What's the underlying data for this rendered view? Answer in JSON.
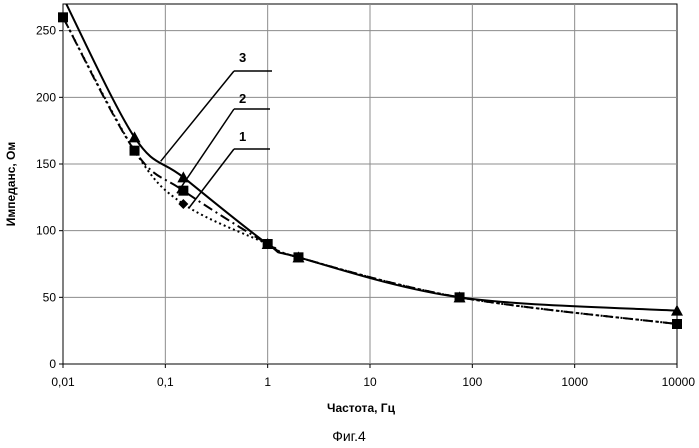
{
  "chart_data": {
    "type": "line",
    "xlabel": "Частота, Гц",
    "ylabel": "Импеданс, Ом",
    "x_scale": "log",
    "xlim": [
      0.01,
      10000
    ],
    "ylim": [
      0,
      270
    ],
    "x_tick_labels": [
      "0,01",
      "0,1",
      "1",
      "10",
      "100",
      "1000",
      "10000"
    ],
    "y_tick_labels": [
      "0",
      "50",
      "100",
      "150",
      "200",
      "250"
    ],
    "grid": true,
    "caption": "Фиг.4",
    "series": [
      {
        "name": "1",
        "style": "dotted",
        "marker": "diamond",
        "x": [
          0.01,
          0.05,
          0.15,
          1,
          2,
          75,
          10000
        ],
        "y": [
          260,
          160,
          120,
          90,
          80,
          50,
          30
        ]
      },
      {
        "name": "2",
        "style": "dash-dot",
        "marker": "square",
        "x": [
          0.01,
          0.05,
          0.15,
          1,
          2,
          75,
          10000
        ],
        "y": [
          260,
          160,
          130,
          90,
          80,
          50,
          30
        ]
      },
      {
        "name": "3",
        "style": "solid",
        "marker": "triangle",
        "x": [
          0.01,
          0.05,
          0.15,
          1,
          2,
          75,
          10000
        ],
        "y": [
          275,
          170,
          140,
          90,
          80,
          50,
          40
        ]
      }
    ]
  }
}
